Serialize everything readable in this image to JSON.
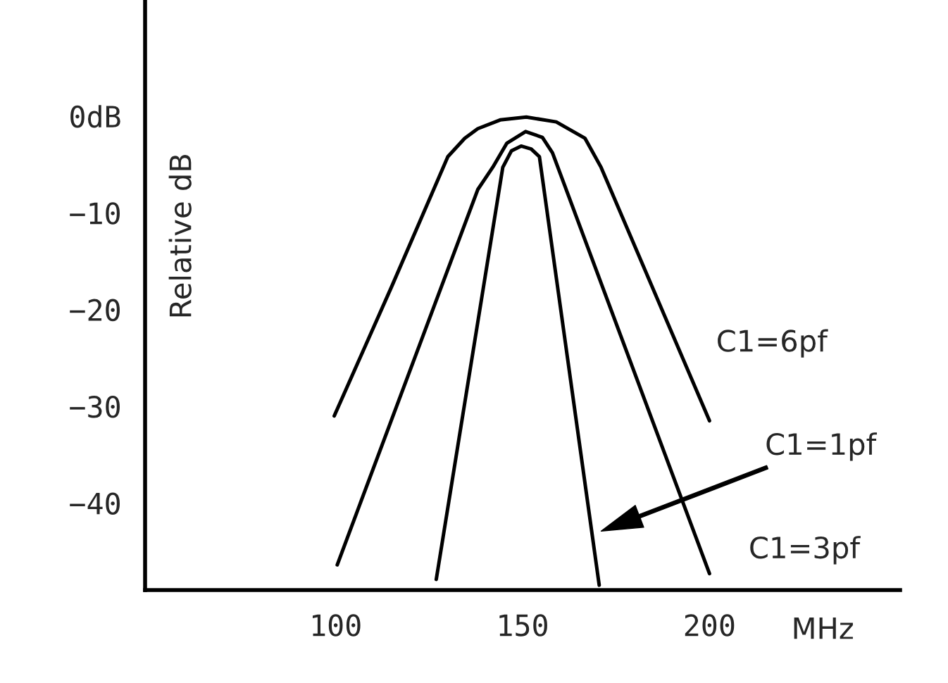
{
  "chart_data": {
    "type": "line",
    "ylabel": "Relative dB",
    "xlabel": "MHz",
    "series": [
      {
        "color": "#000000",
        "x": [
          99.6,
          115,
          130,
          134.5,
          138,
          144,
          151,
          159,
          166.7,
          171,
          200
        ],
        "values": [
          -31,
          -17.6,
          -4.2,
          -2.3,
          -1.3,
          -0.4,
          -0.1,
          -0.6,
          -2.3,
          -5.3,
          -31.5
        ]
      },
      {
        "color": "#000000",
        "x": [
          100.4,
          138,
          142,
          145.8,
          150.8,
          155.3,
          158,
          200
        ],
        "values": [
          -46.4,
          -7.6,
          -5.3,
          -2.8,
          -1.6,
          -2.2,
          -3.8,
          -47.3
        ]
      },
      {
        "color": "#000000",
        "x": [
          126.9,
          144.7,
          147,
          149.6,
          152.3,
          154.5,
          170.5
        ],
        "values": [
          -47.9,
          -5.3,
          -3.6,
          -3.1,
          -3.4,
          -4.2,
          -48.5
        ]
      }
    ],
    "annotations": [
      {
        "text": "C1=6pf",
        "x": 191.3,
        "y": -23.5
      },
      "C1=1pf",
      {
        "text": "C1=3pf",
        "x": 200,
        "y": -47.3
      }
    ],
    "xlim": [
      49,
      251
    ],
    "ylim": [
      -49,
      12
    ],
    "xticks": [
      100,
      150,
      200
    ],
    "yticks": [
      {
        "value": 0,
        "label": "0dB"
      },
      {
        "value": -10,
        "label": "−10"
      },
      {
        "value": -20,
        "label": "−20"
      },
      {
        "value": -30,
        "label": "−30"
      },
      {
        "value": -40,
        "label": "−40"
      }
    ],
    "grid": false,
    "legend": false,
    "marker": "none",
    "line_style": "solid"
  }
}
